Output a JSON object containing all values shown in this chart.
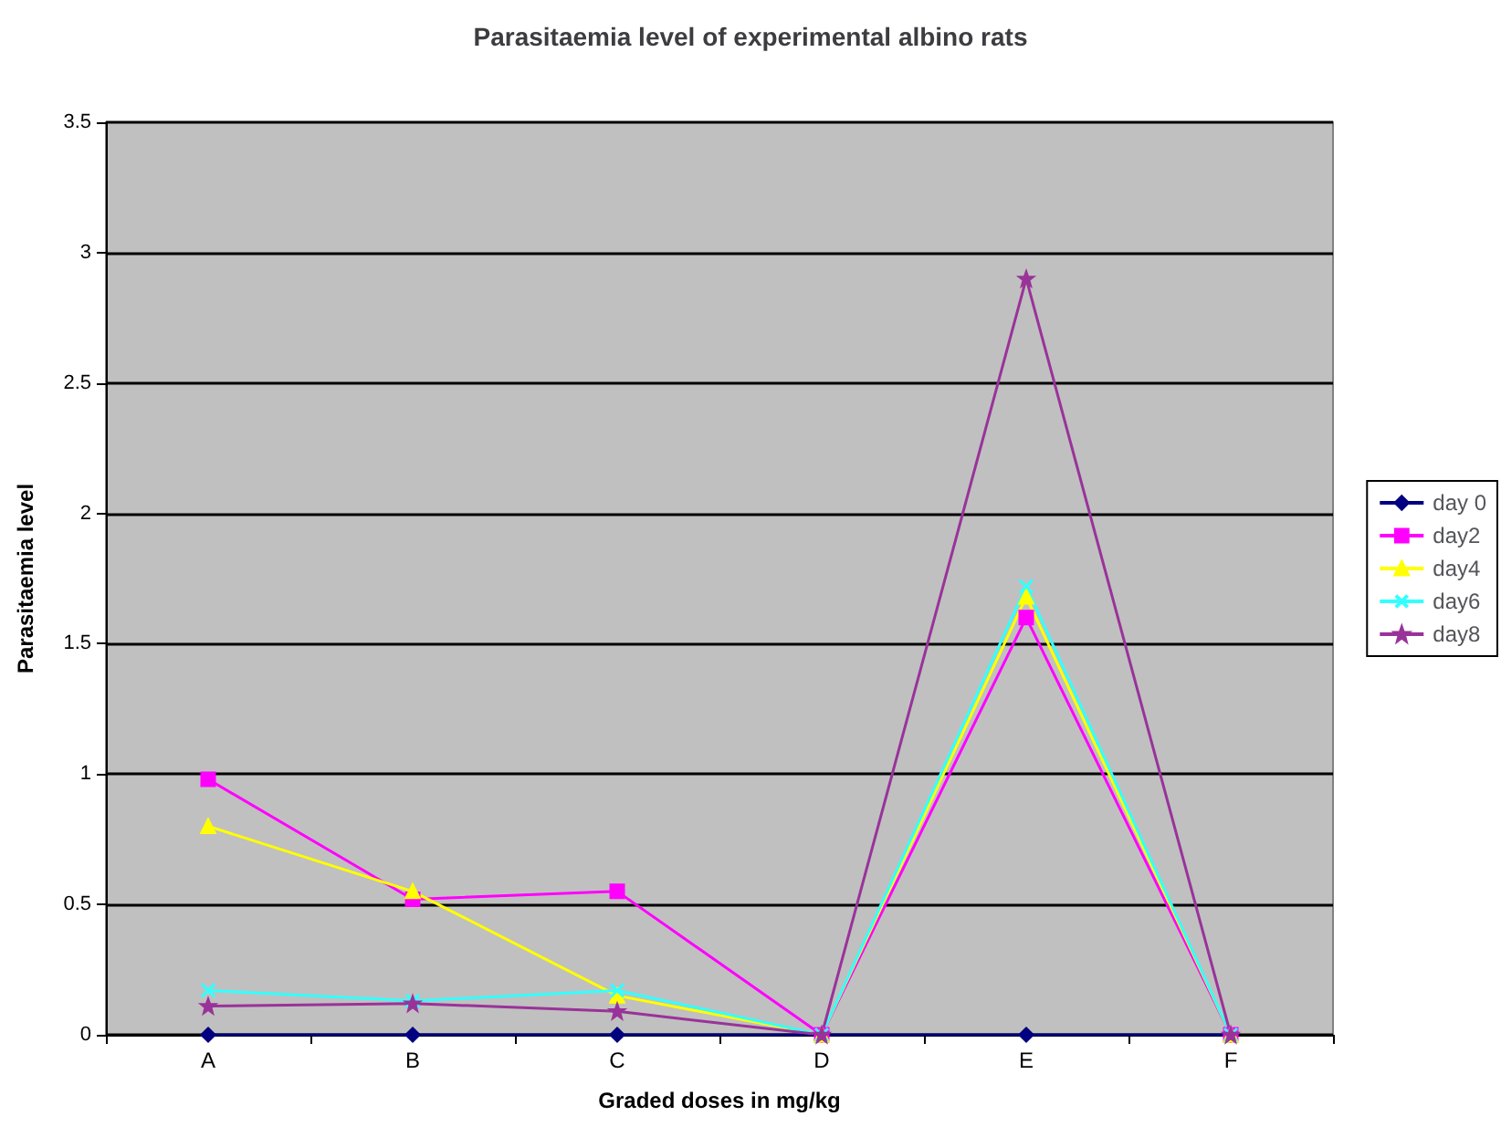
{
  "chart_data": {
    "type": "line",
    "title": "Parasitaemia level of experimental albino rats",
    "xlabel": "Graded doses in mg/kg",
    "ylabel": "Parasitaemia level",
    "categories": [
      "A",
      "B",
      "C",
      "D",
      "E",
      "F"
    ],
    "series": [
      {
        "name": "day 0",
        "color": "#000080",
        "marker": "diamond",
        "values": [
          0,
          0,
          0,
          0,
          0,
          0
        ]
      },
      {
        "name": "day2",
        "color": "#ff00ff",
        "marker": "square",
        "values": [
          0.98,
          0.52,
          0.55,
          0,
          1.6,
          0
        ]
      },
      {
        "name": "day4",
        "color": "#ffff00",
        "marker": "triangle",
        "values": [
          0.8,
          0.55,
          0.15,
          0,
          1.68,
          0
        ]
      },
      {
        "name": "day6",
        "color": "#33ffff",
        "marker": "cross",
        "values": [
          0.17,
          0.13,
          0.17,
          0,
          1.72,
          0
        ]
      },
      {
        "name": "day8",
        "color": "#993399",
        "marker": "star",
        "values": [
          0.11,
          0.12,
          0.09,
          0,
          2.9,
          0
        ]
      }
    ],
    "ylim": [
      0,
      3.5
    ],
    "yticks": [
      0,
      0.5,
      1,
      1.5,
      2,
      2.5,
      3,
      3.5
    ],
    "grid": "y",
    "legend": "right"
  }
}
